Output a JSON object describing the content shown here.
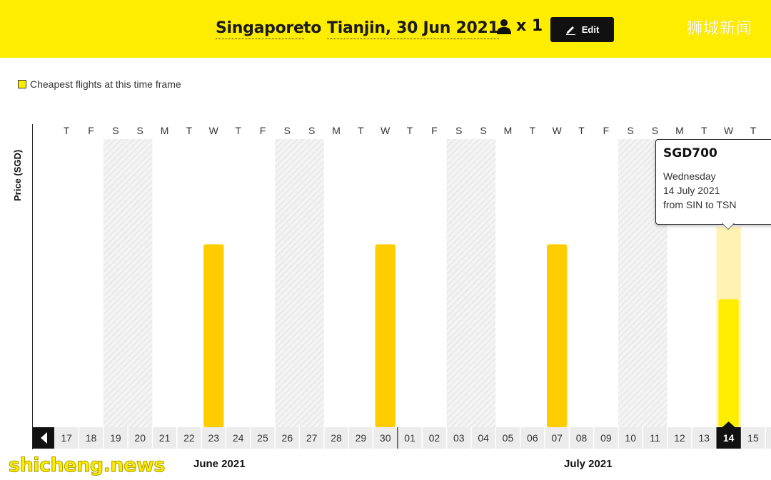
{
  "header": {
    "origin": "Singapore",
    "connector": "to",
    "destination": "Tianjin, 30 Jun 2021",
    "passenger_count": "x 1",
    "edit_label": "Edit",
    "watermark_cn": "狮城新闻"
  },
  "legend": {
    "label": "Cheapest flights at this time frame"
  },
  "chart_data": {
    "type": "bar",
    "ylabel": "Price (SGD)",
    "weekday_labels": [
      "T",
      "F",
      "S",
      "S",
      "M",
      "T",
      "W",
      "T",
      "F",
      "S",
      "S",
      "M",
      "T",
      "W",
      "T",
      "F",
      "S",
      "S",
      "M",
      "T",
      "W",
      "T",
      "F",
      "S",
      "S",
      "M",
      "T",
      "W",
      "T"
    ],
    "categories": [
      "17",
      "18",
      "19",
      "20",
      "21",
      "22",
      "23",
      "24",
      "25",
      "26",
      "27",
      "28",
      "29",
      "30",
      "01",
      "02",
      "03",
      "04",
      "05",
      "06",
      "07",
      "08",
      "09",
      "10",
      "11",
      "12",
      "13",
      "14",
      "15"
    ],
    "values": [
      null,
      null,
      null,
      null,
      null,
      null,
      1000,
      null,
      null,
      null,
      null,
      null,
      null,
      1000,
      null,
      null,
      null,
      null,
      null,
      null,
      1000,
      null,
      null,
      null,
      null,
      null,
      null,
      700,
      null
    ],
    "weekend_indices": [
      2,
      3,
      9,
      10,
      16,
      17,
      23,
      24
    ],
    "highlight_index": 27,
    "months": [
      "June 2021",
      "July 2021"
    ],
    "bar_color": "#ffcc00",
    "highlight_color": "#ffed00",
    "highlight_bg_color": "#fff2b3"
  },
  "tooltip": {
    "price": "SGD700",
    "weekday": "Wednesday",
    "date": "14 July 2021",
    "route": "from SIN to TSN"
  },
  "nav": {
    "prev_icon": "chevron-left-icon"
  },
  "watermark_en": "shicheng.news",
  "colors": {
    "accent": "#ffed00",
    "bar": "#ffcc00",
    "dark": "#111111"
  }
}
